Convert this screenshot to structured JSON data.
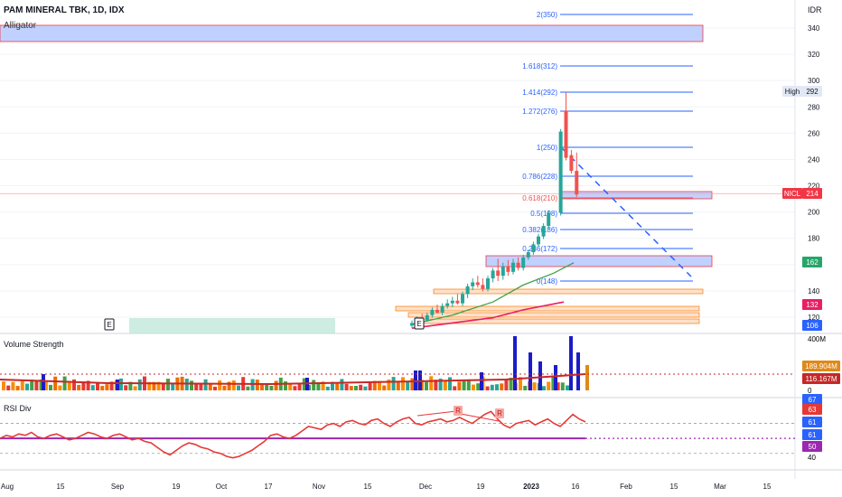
{
  "header": {
    "title": "PAM MINERAL TBK, 1D, IDX",
    "indicator": "Alligator"
  },
  "panes": {
    "volume_title": "Volume Strength",
    "rsi_title": "RSI Div"
  },
  "price_axis": {
    "currency": "IDR",
    "ticks": [
      "340",
      "320",
      "300",
      "280",
      "260",
      "240",
      "220",
      "200",
      "180",
      "160",
      "140",
      "120"
    ],
    "high_label": "High",
    "high_value": "292",
    "ticker_label": "NICL",
    "last_price": "214",
    "badges": [
      "162",
      "132",
      "106"
    ]
  },
  "volume_axis": {
    "top": "400M",
    "badge1": "189.904M",
    "badge2": "116.167M",
    "zero": "0"
  },
  "rsi_axis": {
    "top": "67",
    "badges": [
      "63",
      "61",
      "61",
      "50"
    ],
    "bottom": "40"
  },
  "time_axis": [
    "Aug",
    "15",
    "Sep",
    "19",
    "Oct",
    "17",
    "Nov",
    "15",
    "Dec",
    "19",
    "2023",
    "16",
    "Feb",
    "15",
    "Mar",
    "15"
  ],
  "fib_levels": [
    {
      "label": "2(350)",
      "price": 350
    },
    {
      "label": "1.618(312)",
      "price": 312
    },
    {
      "label": "1.414(292)",
      "price": 292
    },
    {
      "label": "1.272(276)",
      "price": 276
    },
    {
      "label": "1(250)",
      "price": 250
    },
    {
      "label": "0.786(228)",
      "price": 228
    },
    {
      "label": "0.618(210)",
      "price": 210
    },
    {
      "label": "0.5(198)",
      "price": 198
    },
    {
      "label": "0.382(186)",
      "price": 186
    },
    {
      "label": "0.236(172)",
      "price": 172
    },
    {
      "label": "0(148)",
      "price": 148
    }
  ],
  "event_markers": [
    "E",
    "E"
  ],
  "rsi_markers": [
    "R",
    "R"
  ],
  "colors": {
    "up": "#26a69a",
    "down": "#ef5350",
    "fib": "#2962ff",
    "zone": "#b2c6ff",
    "zone_border": "#f23645",
    "rsi": "#e53935",
    "rsi_mid": "#9c27b0",
    "volume_bar": "#1c1cc8",
    "alligator_green": "#43a047",
    "alligator_red": "#e91e63",
    "badge_orange": "#e0891a",
    "badge_red": "#f23645",
    "badge_green": "#26a669",
    "badge_blue": "#2962ff"
  },
  "chart_data": {
    "type": "candlestick",
    "title": "PAM MINERAL TBK, 1D, IDX",
    "ylabel": "IDR",
    "ylim": [
      110,
      352
    ],
    "candles_from_dec": [
      {
        "o": 114,
        "h": 118,
        "l": 112,
        "c": 116
      },
      {
        "o": 116,
        "h": 121,
        "l": 114,
        "c": 119
      },
      {
        "o": 119,
        "h": 123,
        "l": 117,
        "c": 118
      },
      {
        "o": 118,
        "h": 124,
        "l": 117,
        "c": 122
      },
      {
        "o": 122,
        "h": 128,
        "l": 120,
        "c": 126
      },
      {
        "o": 126,
        "h": 130,
        "l": 123,
        "c": 124
      },
      {
        "o": 124,
        "h": 131,
        "l": 122,
        "c": 129
      },
      {
        "o": 129,
        "h": 134,
        "l": 127,
        "c": 131
      },
      {
        "o": 131,
        "h": 136,
        "l": 128,
        "c": 133
      },
      {
        "o": 133,
        "h": 138,
        "l": 130,
        "c": 131
      },
      {
        "o": 131,
        "h": 140,
        "l": 129,
        "c": 138
      },
      {
        "o": 138,
        "h": 146,
        "l": 135,
        "c": 144
      },
      {
        "o": 144,
        "h": 150,
        "l": 141,
        "c": 147
      },
      {
        "o": 147,
        "h": 152,
        "l": 143,
        "c": 145
      },
      {
        "o": 145,
        "h": 150,
        "l": 140,
        "c": 142
      },
      {
        "o": 142,
        "h": 152,
        "l": 140,
        "c": 150
      },
      {
        "o": 150,
        "h": 158,
        "l": 147,
        "c": 156
      },
      {
        "o": 156,
        "h": 165,
        "l": 148,
        "c": 152
      },
      {
        "o": 152,
        "h": 162,
        "l": 149,
        "c": 159
      },
      {
        "o": 159,
        "h": 164,
        "l": 152,
        "c": 155
      },
      {
        "o": 155,
        "h": 165,
        "l": 153,
        "c": 162
      },
      {
        "o": 162,
        "h": 166,
        "l": 156,
        "c": 158
      },
      {
        "o": 158,
        "h": 168,
        "l": 156,
        "c": 166
      },
      {
        "o": 166,
        "h": 172,
        "l": 164,
        "c": 170
      },
      {
        "o": 170,
        "h": 178,
        "l": 168,
        "c": 176
      },
      {
        "o": 176,
        "h": 184,
        "l": 174,
        "c": 182
      },
      {
        "o": 182,
        "h": 192,
        "l": 180,
        "c": 190
      },
      {
        "o": 190,
        "h": 202,
        "l": 188,
        "c": 200
      },
      {
        "o": 200,
        "h": 264,
        "l": 198,
        "c": 262
      },
      {
        "o": 278,
        "h": 292,
        "l": 240,
        "c": 242
      },
      {
        "o": 244,
        "h": 248,
        "l": 230,
        "c": 232
      },
      {
        "o": 232,
        "h": 246,
        "l": 212,
        "c": 214
      }
    ],
    "alligator": {
      "jaw_red": [
        [
          0,
          112
        ],
        [
          8,
          116
        ],
        [
          16,
          120
        ],
        [
          22,
          126
        ],
        [
          30,
          132
        ]
      ],
      "lips_green": [
        [
          0,
          115
        ],
        [
          8,
          122
        ],
        [
          16,
          132
        ],
        [
          22,
          145
        ],
        [
          28,
          154
        ],
        [
          32,
          162
        ]
      ]
    },
    "volume": {
      "ylim": [
        0,
        400
      ],
      "unit": "M",
      "ma_value": 116.167,
      "last_value": 189.904
    },
    "rsi": {
      "ylim": [
        35,
        70
      ],
      "mid": 50,
      "last": 61,
      "values": [
        50,
        52,
        51,
        53,
        52,
        54,
        51,
        50,
        52,
        53,
        51,
        49,
        50,
        52,
        54,
        53,
        51,
        50,
        52,
        53,
        51,
        49,
        50,
        48,
        47,
        44,
        41,
        39,
        42,
        45,
        47,
        46,
        44,
        43,
        41,
        40,
        38,
        37,
        38,
        40,
        42,
        45,
        48,
        52,
        53,
        51,
        50,
        52,
        55,
        58,
        57,
        56,
        59,
        60,
        58,
        61,
        62,
        60,
        59,
        62,
        63,
        60,
        58,
        61,
        63,
        64,
        60,
        59,
        61,
        62,
        63,
        61,
        62,
        64,
        62,
        60,
        63,
        66,
        68,
        63,
        59,
        57,
        60,
        61,
        62,
        59,
        61,
        63,
        60,
        58,
        62,
        66,
        63,
        61
      ]
    }
  }
}
